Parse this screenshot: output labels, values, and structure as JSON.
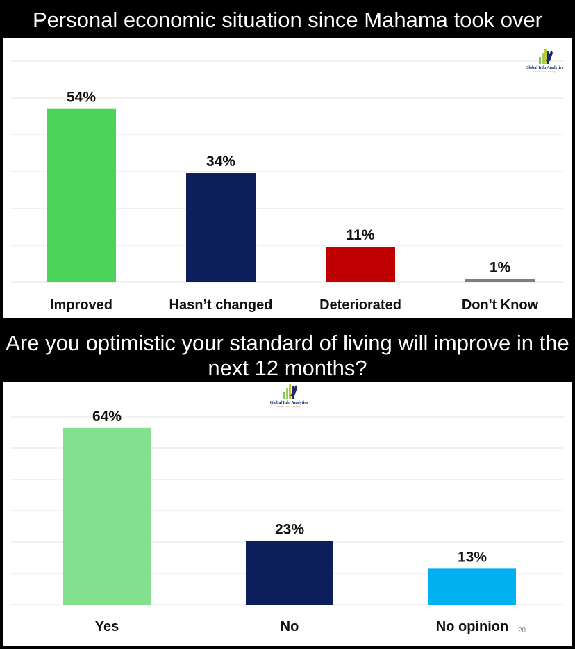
{
  "chart_data": [
    {
      "type": "bar",
      "title": "Personal economic situation since Mahama took over",
      "categories": [
        "Improved",
        "Hasn’t changed",
        "Deteriorated",
        "Don't Know"
      ],
      "values": [
        54,
        34,
        11,
        1
      ],
      "value_labels": [
        "54%",
        "34%",
        "11%",
        "1%"
      ],
      "colors": [
        "#4cd45a",
        "#0c1f5c",
        "#c00000",
        "#7f7f7f"
      ],
      "ylim": [
        0,
        60
      ],
      "grid": true,
      "legend": "none"
    },
    {
      "type": "bar",
      "title": "Are you optimistic your standard of living will improve in the next 12 months?",
      "categories": [
        "Yes",
        "No",
        "No opinion"
      ],
      "values": [
        64,
        23,
        13
      ],
      "value_labels": [
        "64%",
        "23%",
        "13%"
      ],
      "colors": [
        "#82e08e",
        "#0c1f5c",
        "#00b0f0"
      ],
      "ylim": [
        0,
        70
      ],
      "grid": true,
      "legend": "none"
    }
  ],
  "logo": {
    "name": "Global Info Analytics",
    "tagline": "Insight · Data · Strategy"
  },
  "page_number": "20"
}
